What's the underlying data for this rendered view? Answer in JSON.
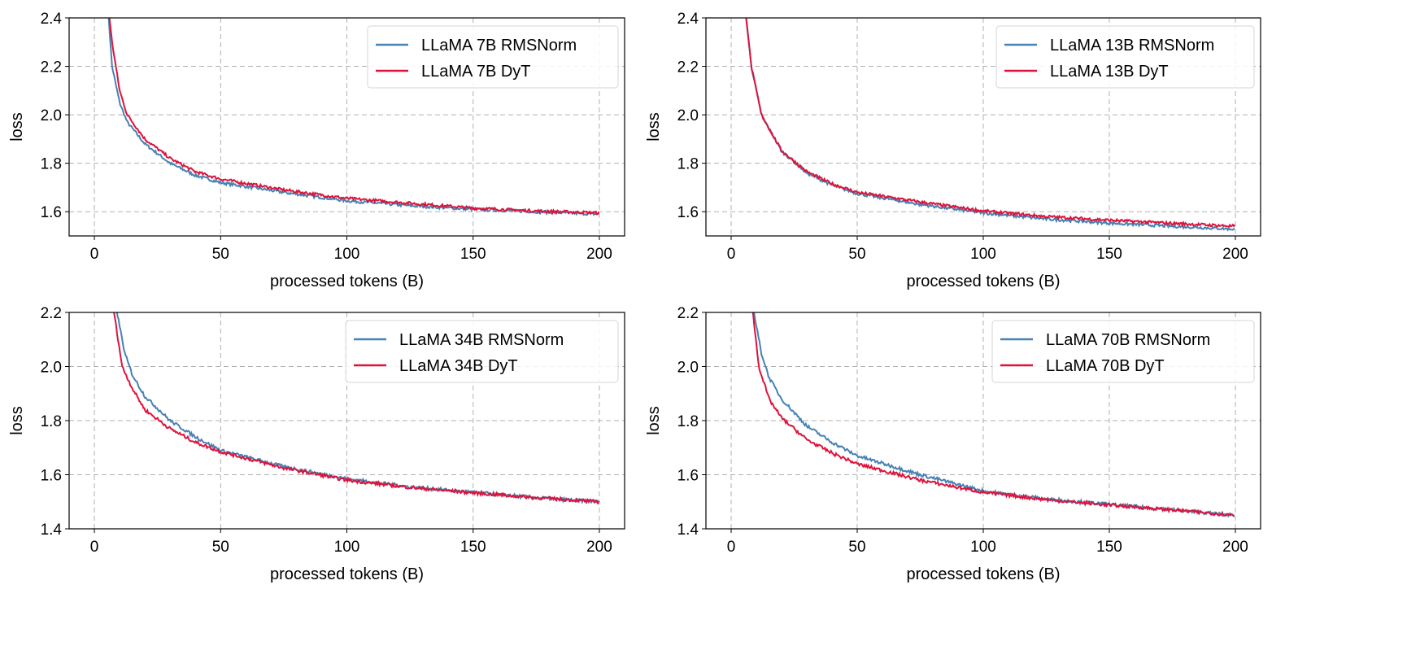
{
  "colors": {
    "rmsnorm": "#4682b4",
    "dyt": "#dc143c",
    "grid": "#b0b0b0"
  },
  "chart_data": [
    {
      "type": "line",
      "xlabel": "processed tokens (B)",
      "ylabel": "loss",
      "xlim": [
        -10,
        210
      ],
      "ylim": [
        1.5,
        2.4
      ],
      "xticks": [
        "0",
        "50",
        "100",
        "150",
        "200"
      ],
      "yticks": [
        "1.6",
        "1.8",
        "2.0",
        "2.2",
        "2.4"
      ],
      "grid": true,
      "legend": "top-right",
      "series": [
        {
          "name": "LLaMA 7B RMSNorm",
          "color": "rmsnorm",
          "x": [
            5,
            7,
            10,
            13,
            20,
            30,
            40,
            50,
            75,
            100,
            125,
            150,
            175,
            200
          ],
          "y": [
            2.5,
            2.2,
            2.05,
            1.97,
            1.88,
            1.8,
            1.75,
            1.72,
            1.68,
            1.645,
            1.625,
            1.61,
            1.6,
            1.59
          ]
        },
        {
          "name": "LLaMA 7B DyT",
          "color": "dyt",
          "x": [
            5,
            7,
            10,
            13,
            20,
            30,
            40,
            50,
            75,
            100,
            125,
            150,
            175,
            200
          ],
          "y": [
            2.5,
            2.3,
            2.1,
            2.0,
            1.9,
            1.82,
            1.765,
            1.735,
            1.69,
            1.655,
            1.635,
            1.615,
            1.603,
            1.595
          ]
        }
      ]
    },
    {
      "type": "line",
      "xlabel": "processed tokens (B)",
      "ylabel": "loss",
      "xlim": [
        -10,
        210
      ],
      "ylim": [
        1.5,
        2.4
      ],
      "xticks": [
        "0",
        "50",
        "100",
        "150",
        "200"
      ],
      "yticks": [
        "1.6",
        "1.8",
        "2.0",
        "2.2",
        "2.4"
      ],
      "grid": true,
      "legend": "top-right",
      "series": [
        {
          "name": "LLaMA 13B RMSNorm",
          "color": "rmsnorm",
          "x": [
            5,
            8,
            12,
            20,
            30,
            40,
            50,
            75,
            100,
            125,
            150,
            175,
            200
          ],
          "y": [
            2.5,
            2.2,
            2.0,
            1.85,
            1.76,
            1.71,
            1.675,
            1.63,
            1.595,
            1.57,
            1.553,
            1.54,
            1.528
          ]
        },
        {
          "name": "LLaMA 13B DyT",
          "color": "dyt",
          "x": [
            5,
            8,
            12,
            20,
            30,
            40,
            50,
            75,
            100,
            125,
            150,
            175,
            200
          ],
          "y": [
            2.5,
            2.2,
            2.0,
            1.852,
            1.765,
            1.715,
            1.68,
            1.64,
            1.603,
            1.58,
            1.565,
            1.552,
            1.54
          ]
        }
      ]
    },
    {
      "type": "line",
      "xlabel": "processed tokens (B)",
      "ylabel": "loss",
      "xlim": [
        -10,
        210
      ],
      "ylim": [
        1.4,
        2.2
      ],
      "xticks": [
        "0",
        "50",
        "100",
        "150",
        "200"
      ],
      "yticks": [
        "1.4",
        "1.6",
        "1.8",
        "2.0",
        "2.2"
      ],
      "grid": true,
      "legend": "top-right",
      "series": [
        {
          "name": "LLaMA 34B RMSNorm",
          "color": "rmsnorm",
          "x": [
            8,
            12,
            15,
            20,
            30,
            40,
            50,
            75,
            100,
            125,
            150,
            175,
            200
          ],
          "y": [
            2.25,
            2.05,
            1.97,
            1.89,
            1.8,
            1.74,
            1.69,
            1.63,
            1.585,
            1.555,
            1.535,
            1.515,
            1.5
          ]
        },
        {
          "name": "LLaMA 34B DyT",
          "color": "dyt",
          "x": [
            7,
            11,
            15,
            20,
            30,
            40,
            50,
            75,
            100,
            125,
            150,
            175,
            200
          ],
          "y": [
            2.25,
            2.0,
            1.92,
            1.84,
            1.77,
            1.72,
            1.685,
            1.625,
            1.58,
            1.553,
            1.533,
            1.515,
            1.5
          ]
        }
      ]
    },
    {
      "type": "line",
      "xlabel": "processed tokens (B)",
      "ylabel": "loss",
      "xlim": [
        -10,
        210
      ],
      "ylim": [
        1.4,
        2.2
      ],
      "xticks": [
        "0",
        "50",
        "100",
        "150",
        "200"
      ],
      "yticks": [
        "1.4",
        "1.6",
        "1.8",
        "2.0",
        "2.2"
      ],
      "grid": true,
      "legend": "top-right",
      "series": [
        {
          "name": "LLaMA 70B RMSNorm",
          "color": "rmsnorm",
          "x": [
            8,
            12,
            15,
            20,
            30,
            40,
            50,
            75,
            100,
            125,
            150,
            175,
            200
          ],
          "y": [
            2.25,
            2.05,
            1.96,
            1.88,
            1.78,
            1.72,
            1.67,
            1.6,
            1.54,
            1.51,
            1.49,
            1.47,
            1.45
          ]
        },
        {
          "name": "LLaMA 70B DyT",
          "color": "dyt",
          "x": [
            8,
            11,
            15,
            20,
            30,
            40,
            50,
            75,
            100,
            125,
            150,
            175,
            200
          ],
          "y": [
            2.25,
            2.0,
            1.88,
            1.81,
            1.73,
            1.68,
            1.64,
            1.58,
            1.535,
            1.508,
            1.488,
            1.47,
            1.45
          ]
        }
      ]
    }
  ]
}
